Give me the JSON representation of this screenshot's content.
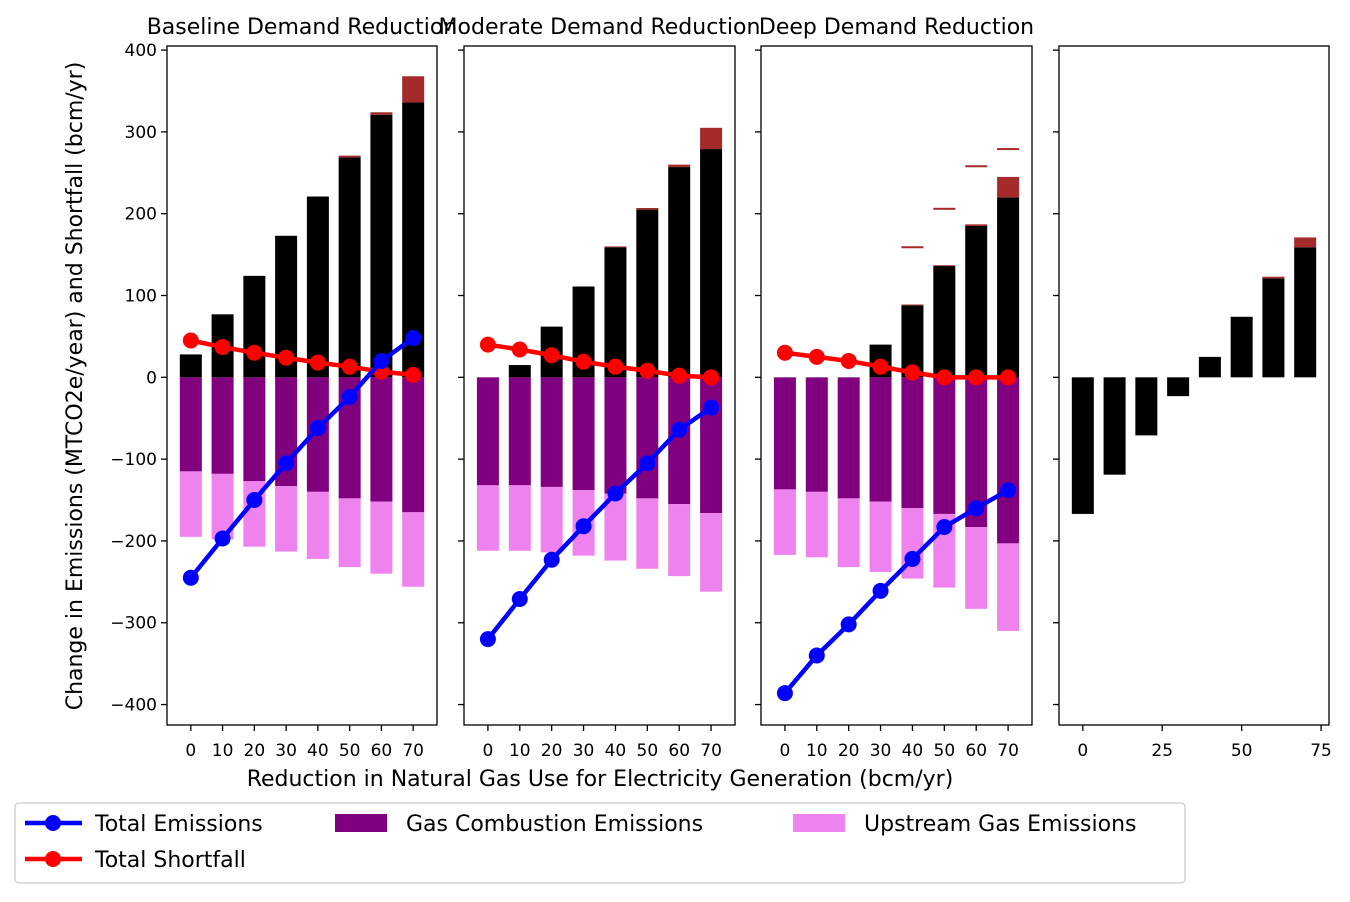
{
  "colors": {
    "black_bar": "#000000",
    "brown_top": "#a52a2a",
    "combustion": "#800080",
    "upstream": "#ee82ee",
    "total_emissions": "#0000ff",
    "total_shortfall": "#ff0000"
  },
  "axis_labels": {
    "y": "Change in Emissions (MTCO2e/year) and Shortfall (bcm/yr)",
    "x": "Reduction in Natural Gas Use for Electricity Generation (bcm/yr)"
  },
  "legend": [
    {
      "label": "Total Emissions",
      "kind": "line",
      "color": "#0000ff"
    },
    {
      "label": "Gas Combustion Emissions",
      "kind": "patch",
      "color": "#800080"
    },
    {
      "label": "Upstream Gas Emissions",
      "kind": "patch",
      "color": "#ee82ee"
    },
    {
      "label": "Total Shortfall",
      "kind": "line",
      "color": "#ff0000"
    }
  ],
  "chart_data": [
    {
      "type": "bar",
      "title": "Baseline Demand Reduction",
      "x": [
        0,
        10,
        20,
        30,
        40,
        50,
        60,
        70
      ],
      "x_ticks": [
        0,
        10,
        20,
        30,
        40,
        50,
        60,
        70
      ],
      "ylim": [
        -425,
        405
      ],
      "y_ticks": [
        -400,
        -300,
        -200,
        -100,
        0,
        100,
        200,
        300,
        400
      ],
      "series": [
        {
          "name": "Gas Combustion Emissions",
          "values": [
            -115,
            -118,
            -127,
            -133,
            -140,
            -148,
            -152,
            -165
          ]
        },
        {
          "name": "Upstream Gas Emissions",
          "values": [
            -80,
            -80,
            -80,
            -80,
            -82,
            -84,
            -88,
            -91
          ]
        },
        {
          "values": [
            28,
            77,
            124,
            173,
            221,
            269,
            321,
            336
          ]
        },
        {
          "values": [
            0,
            0,
            0,
            0,
            0,
            2,
            3,
            32
          ]
        },
        {
          "name": "Total Emissions",
          "values": [
            -245,
            -197,
            -150,
            -105,
            -62,
            -24,
            20,
            48
          ]
        },
        {
          "name": "Total Shortfall",
          "values": [
            45,
            37,
            30,
            24,
            18,
            13,
            7,
            3
          ]
        }
      ]
    },
    {
      "type": "bar",
      "title": "Moderate Demand Reduction",
      "x": [
        0,
        10,
        20,
        30,
        40,
        50,
        60,
        70
      ],
      "x_ticks": [
        0,
        10,
        20,
        30,
        40,
        50,
        60,
        70
      ],
      "ylim": [
        -425,
        405
      ],
      "y_ticks": [
        -400,
        -300,
        -200,
        -100,
        0,
        100,
        200,
        300,
        400
      ],
      "series": [
        {
          "name": "Gas Combustion Emissions",
          "values": [
            -132,
            -132,
            -134,
            -138,
            -142,
            -148,
            -155,
            -166
          ]
        },
        {
          "name": "Upstream Gas Emissions",
          "values": [
            -80,
            -80,
            -80,
            -80,
            -82,
            -86,
            -88,
            -96
          ]
        },
        {
          "values": [
            0,
            15,
            62,
            111,
            159,
            205,
            257,
            279
          ]
        },
        {
          "values": [
            0,
            0,
            0,
            0,
            1,
            2,
            3,
            26
          ]
        },
        {
          "name": "Total Emissions",
          "values": [
            -320,
            -271,
            -223,
            -182,
            -142,
            -105,
            -64,
            -37
          ]
        },
        {
          "name": "Total Shortfall",
          "values": [
            40,
            34,
            27,
            19,
            13,
            8,
            2,
            0
          ]
        }
      ]
    },
    {
      "type": "bar",
      "title": "Deep Demand Reduction",
      "x": [
        0,
        10,
        20,
        30,
        40,
        50,
        60,
        70
      ],
      "x_ticks": [
        0,
        10,
        20,
        30,
        40,
        50,
        60,
        70
      ],
      "ylim": [
        -425,
        405
      ],
      "y_ticks": [
        -400,
        -300,
        -200,
        -100,
        0,
        100,
        200,
        300,
        400
      ],
      "series": [
        {
          "name": "Gas Combustion Emissions",
          "values": [
            -137,
            -140,
            -148,
            -152,
            -160,
            -167,
            -183,
            -203
          ]
        },
        {
          "name": "Upstream Gas Emissions",
          "values": [
            -80,
            -80,
            -84,
            -86,
            -86,
            -90,
            -100,
            -107
          ]
        },
        {
          "values": [
            0,
            0,
            0,
            40,
            88,
            136,
            185,
            220
          ]
        },
        {
          "values": [
            0,
            0,
            0,
            0,
            1,
            1,
            2,
            25
          ]
        },
        {
          "values": [
            0,
            0,
            0,
            0,
            159,
            206,
            258,
            279
          ]
        },
        {
          "name": "Total Emissions",
          "values": [
            -386,
            -340,
            -302,
            -261,
            -222,
            -183,
            -160,
            -138
          ]
        },
        {
          "name": "Total Shortfall",
          "values": [
            30,
            25,
            20,
            13,
            6,
            0,
            0,
            0
          ]
        }
      ]
    },
    {
      "type": "bar",
      "title": "",
      "x": [
        0,
        10,
        20,
        30,
        40,
        50,
        60,
        70
      ],
      "x_ticks": [
        0,
        25,
        50,
        75
      ],
      "ylim": [
        -425,
        405
      ],
      "y_ticks": [
        -400,
        -300,
        -200,
        -100,
        0,
        100,
        200,
        300,
        400
      ],
      "series": [
        {
          "values": [
            -167,
            -119,
            -71,
            -23,
            25,
            74,
            121,
            159
          ]
        },
        {
          "values": [
            0,
            0,
            0,
            0,
            0,
            0,
            2,
            12
          ]
        }
      ]
    }
  ]
}
